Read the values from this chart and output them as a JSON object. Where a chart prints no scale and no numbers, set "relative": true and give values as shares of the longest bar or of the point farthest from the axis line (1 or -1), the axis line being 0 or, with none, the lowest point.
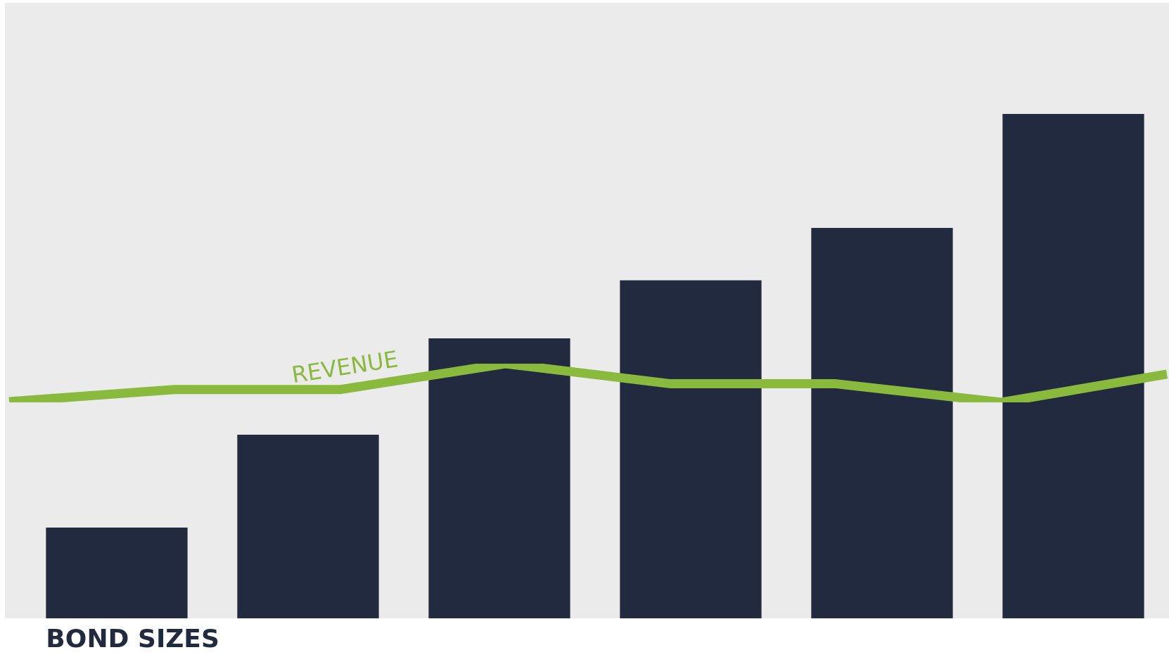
{
  "chart_data": [
    {
      "type": "bar",
      "relative": true,
      "categories": [
        null,
        null,
        null,
        null,
        null,
        null
      ],
      "legend": false,
      "series": [
        {
          "name": "BOND SIZES",
          "color": "#222a3f",
          "values": [
            0.18,
            0.364,
            0.555,
            0.67,
            0.774,
            1
          ]
        }
      ]
    },
    {
      "type": "line",
      "relative": true,
      "categories": [
        null,
        null,
        null,
        null,
        null,
        null,
        null,
        null
      ],
      "legend": false,
      "series": [
        {
          "name": "REVENUE",
          "color": "#8aba3d",
          "values": [
            0.02,
            0.33,
            0.33,
            1,
            0.48,
            0.48,
            0,
            0.73
          ]
        }
      ]
    }
  ]
}
